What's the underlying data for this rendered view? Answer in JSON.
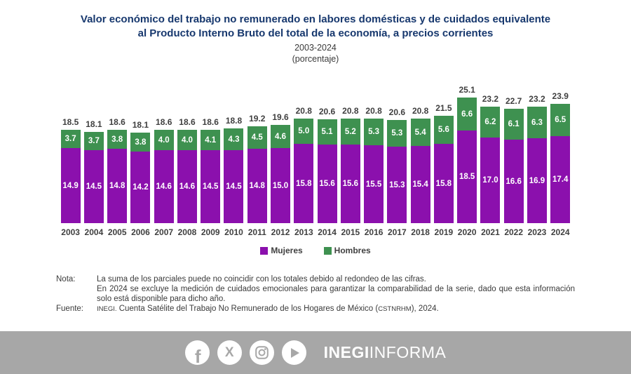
{
  "header": {
    "title_line1": "Valor económico del trabajo no remunerado en labores domésticas y de cuidados equivalente",
    "title_line2": "al Producto Interno Bruto del total de la economía, a precios corrientes",
    "period": "2003-2024",
    "unit": "(porcentaje)"
  },
  "chart_data": {
    "type": "bar",
    "stacked": true,
    "title": "Valor económico del trabajo no remunerado en labores domésticas y de cuidados equivalente al Producto Interno Bruto del total de la economía, a precios corrientes",
    "subtitle": "2003-2024 (porcentaje)",
    "categories": [
      "2003",
      "2004",
      "2005",
      "2006",
      "2007",
      "2008",
      "2009",
      "2010",
      "2011",
      "2012",
      "2013",
      "2014",
      "2015",
      "2016",
      "2017",
      "2018",
      "2019",
      "2020",
      "2021",
      "2022",
      "2023",
      "2024"
    ],
    "series": [
      {
        "name": "Mujeres",
        "color": "#8B10AD",
        "values": [
          14.9,
          14.5,
          14.8,
          14.2,
          14.6,
          14.6,
          14.5,
          14.5,
          14.8,
          15.0,
          15.8,
          15.6,
          15.6,
          15.5,
          15.3,
          15.4,
          15.8,
          18.5,
          17.0,
          16.6,
          16.9,
          17.4
        ]
      },
      {
        "name": "Hombres",
        "color": "#3E9150",
        "values": [
          3.7,
          3.7,
          3.8,
          3.8,
          4.0,
          4.0,
          4.1,
          4.3,
          4.5,
          4.6,
          5.0,
          5.1,
          5.2,
          5.3,
          5.3,
          5.4,
          5.6,
          6.6,
          6.2,
          6.1,
          6.3,
          6.5
        ]
      }
    ],
    "totals": [
      18.5,
      18.1,
      18.6,
      18.1,
      18.6,
      18.6,
      18.6,
      18.8,
      19.2,
      19.6,
      20.8,
      20.6,
      20.8,
      20.8,
      20.6,
      20.8,
      21.5,
      25.1,
      23.2,
      22.7,
      23.2,
      23.9
    ],
    "ylabel": "porcentaje",
    "ylim": [
      0,
      26
    ],
    "grid": false,
    "legend_position": "bottom",
    "value_labels": true
  },
  "legend": {
    "items": [
      {
        "label": "Mujeres",
        "color": "#8B10AD"
      },
      {
        "label": "Hombres",
        "color": "#3E9150"
      }
    ]
  },
  "notes": {
    "nota_label": "Nota:",
    "nota_line1": "La suma de los parciales puede no coincidir con los totales debido al redondeo de las cifras.",
    "nota_line2": "En 2024 se excluye la medición de cuidados emocionales para garantizar la comparabilidad de la serie, dado que esta información solo está disponible para dicho año.",
    "fuente_label": "Fuente:",
    "fuente_org": "INEGI.",
    "fuente_text": " Cuenta Satélite del Trabajo No Remunerado de los Hogares de México (",
    "fuente_acronym": "CSTNRHM",
    "fuente_suffix": "), 2024."
  },
  "footer": {
    "background": "#A7A7A7",
    "icons": [
      "facebook-icon",
      "x-icon",
      "instagram-icon",
      "youtube-icon"
    ],
    "facebook_glyph": "f",
    "x_glyph": "X",
    "brand_bold": "INEGI",
    "brand_regular": "INFORMA"
  },
  "colors": {
    "title_navy": "#17386E",
    "label_ink": "#3F3F3F",
    "footer_gray": "#A7A7A7"
  }
}
